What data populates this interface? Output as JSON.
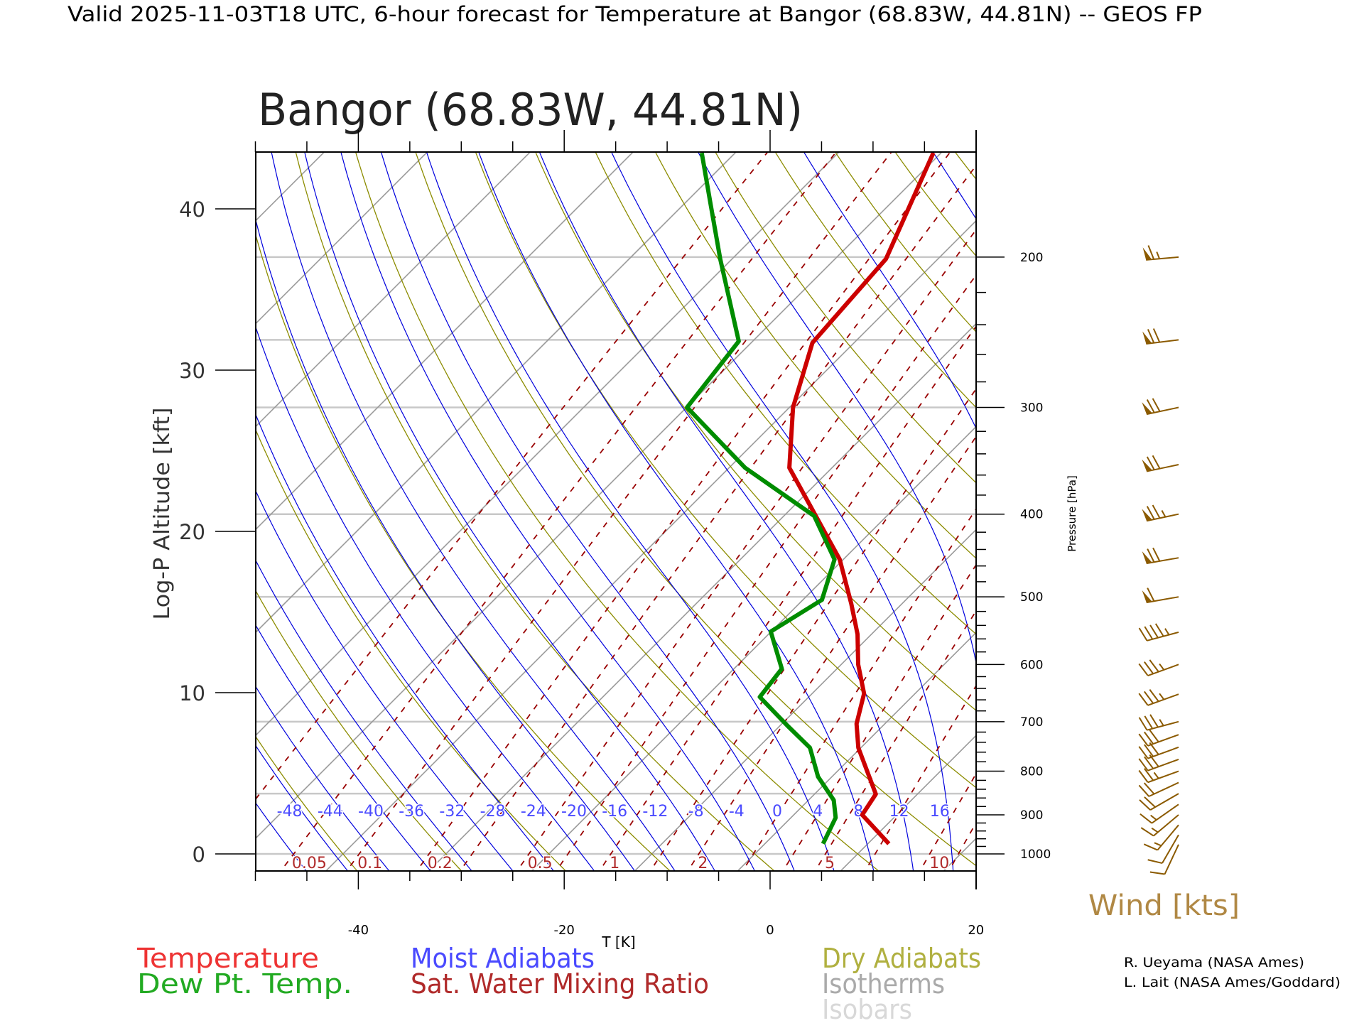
{
  "header": {
    "title": "Valid 2025-11-03T18 UTC, 6-hour forecast for Temperature at Bangor (68.83W, 44.81N) -- GEOS FP",
    "station_title": "Bangor (68.83W, 44.81N)"
  },
  "legend": {
    "temperature": "Temperature",
    "dewpoint": "Dew Pt. Temp.",
    "moist_adiabats": "Moist Adiabats",
    "mixing_ratio": "Sat. Water Mixing Ratio",
    "dry_adiabats": "Dry Adiabats",
    "isotherms": "Isotherms",
    "isobars": "Isobars",
    "wind": "Wind [kts]"
  },
  "credits": [
    "R. Ueyama (NASA Ames)",
    "L. Lait (NASA Ames/Goddard)"
  ],
  "colors": {
    "temperature": "#cc0000",
    "temperature_text": "#ee3333",
    "dewpoint": "#008c00",
    "dewpoint_text": "#22aa22",
    "moist": "#0000dd",
    "moist_text": "#4a4aff",
    "mixing": "#990000",
    "mixing_text": "#b02a2a",
    "dry": "#8c8c00",
    "dry_text": "#b0b040",
    "isotherm": "#9a9a9a",
    "isotherm_text": "#aaaaaa",
    "isobar": "#c8c8c8",
    "isobar_text": "#d8d8d8",
    "wind": "#8b5a00",
    "wind_text": "#b08844"
  },
  "chart_data": {
    "type": "line",
    "title": "Bangor (68.83W, 44.81N)",
    "xlabel": "T [K]",
    "ylabel": "Log-P Altitude [kft]",
    "y2label": "Pressure [hPa]",
    "xlim": [
      -50,
      20
    ],
    "plim": [
      1047,
      150
    ],
    "x_ticks": [
      "-40",
      "-20",
      "0",
      "20"
    ],
    "x_tick_values": [
      -40,
      -20,
      0,
      20
    ],
    "alt_ticks": [
      "0",
      "10",
      "20",
      "30",
      "40"
    ],
    "alt_tick_values": [
      0,
      10,
      20,
      30,
      40
    ],
    "pressure_ticks": [
      "200",
      "300",
      "400",
      "500",
      "600",
      "700",
      "800",
      "900",
      "1000"
    ],
    "pressure_tick_values": [
      200,
      300,
      400,
      500,
      600,
      700,
      800,
      900,
      1000
    ],
    "series": [
      {
        "name": "Temperature",
        "pressure": [
          151,
          201,
          252,
          300,
          353,
          398,
          452,
          509,
          553,
          600,
          649,
          704,
          751,
          851,
          900,
          973
        ],
        "values": [
          -53.9,
          -48.2,
          -47.2,
          -42.8,
          -37.3,
          -30.6,
          -23.5,
          -18.1,
          -14.5,
          -11.5,
          -8.1,
          -5.9,
          -3.4,
          2.8,
          3.5,
          8.9
        ]
      },
      {
        "name": "Dew Pt. Temp.",
        "pressure": [
          151,
          172,
          201,
          251,
          300,
          353,
          402,
          452,
          504,
          549,
          607,
          655,
          708,
          751,
          812,
          865,
          907,
          973
        ],
        "values": [
          -76.4,
          -70.9,
          -64.3,
          -54.5,
          -53.1,
          -41.6,
          -30.2,
          -24.0,
          -21.3,
          -23.2,
          -18.5,
          -17.9,
          -12.4,
          -8.1,
          -4.5,
          -0.7,
          1.2,
          2.5
        ]
      }
    ],
    "wind": {
      "units": "kts",
      "pressure": [
        200,
        250,
        300,
        350,
        400,
        450,
        500,
        550,
        600,
        650,
        700,
        725,
        750,
        775,
        800,
        825,
        850,
        875,
        900,
        925,
        950,
        975
      ],
      "speed": [
        65,
        70,
        70,
        70,
        75,
        70,
        60,
        45,
        35,
        35,
        35,
        30,
        30,
        30,
        25,
        20,
        20,
        15,
        15,
        15,
        10,
        10
      ],
      "direction": [
        265,
        263,
        258,
        258,
        258,
        260,
        260,
        255,
        250,
        250,
        255,
        250,
        250,
        250,
        250,
        245,
        240,
        235,
        230,
        220,
        210,
        205
      ]
    },
    "isobars_hpa": [
      1000,
      850,
      700,
      500,
      400,
      300,
      250,
      200
    ],
    "isotherms_k": [
      150,
      160,
      170,
      180,
      190,
      200,
      210,
      220,
      230,
      240,
      250,
      260,
      270,
      280,
      290,
      300
    ],
    "dry_adiabats_k": [
      220,
      230,
      240,
      250,
      260,
      270,
      280,
      290,
      300,
      310,
      320,
      330,
      340,
      350,
      360,
      370,
      380,
      390,
      400,
      410,
      420,
      430,
      440,
      450,
      460,
      470,
      480,
      490,
      500
    ],
    "moist_adiabats_c": [
      -48,
      -44,
      -40,
      -36,
      -32,
      -28,
      -24,
      -20,
      -16,
      -12,
      -8,
      -4,
      0,
      4,
      8,
      12,
      16,
      20,
      24,
      28
    ],
    "moist_labels": [
      "-48",
      "-44",
      "-40",
      "-36",
      "-32",
      "-28",
      "-24",
      "-20",
      "-16",
      "-12",
      "-8",
      "-4",
      "0",
      "4",
      "8",
      "12",
      "16"
    ],
    "moist_label_values": [
      -48,
      -44,
      -40,
      -36,
      -32,
      -28,
      -24,
      -20,
      -16,
      -12,
      -8,
      -4,
      0,
      4,
      8,
      12,
      16
    ],
    "mixing_ratios_gkg": [
      0.02,
      0.05,
      0.1,
      0.2,
      0.3,
      0.5,
      0.7,
      1,
      1.5,
      2,
      3,
      4,
      5,
      7,
      10,
      12,
      15,
      20,
      25
    ],
    "mixing_labels": [
      "0.05",
      "0.1",
      "0.2",
      "0.5",
      "1",
      "2",
      "5",
      "10"
    ],
    "mixing_label_values": [
      0.05,
      0.1,
      0.2,
      0.5,
      1,
      2,
      5,
      10
    ]
  }
}
